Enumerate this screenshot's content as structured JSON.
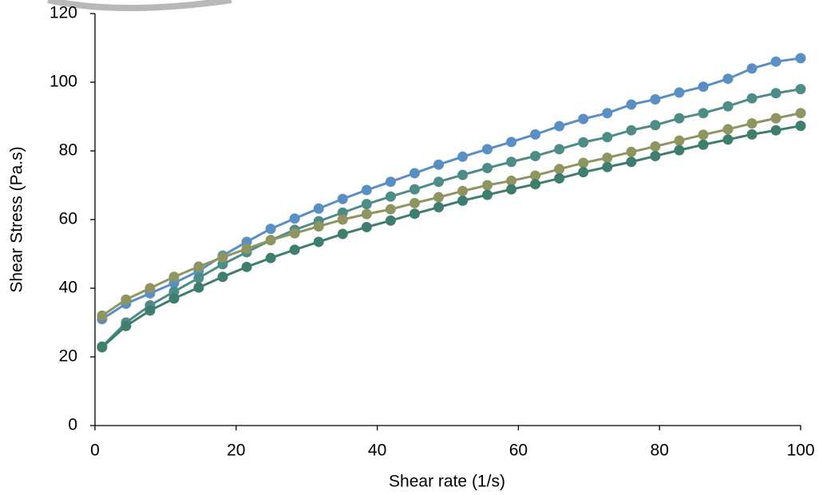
{
  "chart_data": {
    "type": "line",
    "xlabel": "Shear rate (1/s)",
    "ylabel": "Shear Stress (Pa.s)",
    "x": [
      1,
      4.4,
      7.8,
      11.2,
      14.7,
      18.1,
      21.5,
      24.9,
      28.3,
      31.7,
      35.1,
      38.5,
      41.9,
      45.3,
      48.7,
      52.1,
      55.6,
      59,
      62.4,
      65.8,
      69.2,
      72.6,
      76,
      79.4,
      82.8,
      86.2,
      89.7,
      93.1,
      96.5,
      100
    ],
    "series": [
      {
        "color": "#5b8fc4",
        "values": [
          31,
          35.5,
          38.5,
          41.5,
          45,
          49.5,
          53.5,
          57.3,
          60.3,
          63.2,
          66,
          68.6,
          71,
          73.5,
          76,
          78.3,
          80.5,
          82.6,
          84.8,
          87.2,
          89.3,
          91,
          93.5,
          95,
          97,
          98.7,
          101,
          104,
          106,
          107
        ]
      },
      {
        "color": "#4f8c88",
        "values": [
          23,
          30,
          35,
          39,
          43,
          47,
          50.5,
          54,
          57,
          59.5,
          62,
          64.5,
          66.7,
          68.8,
          71,
          73,
          75,
          76.8,
          78.5,
          80.5,
          82.5,
          84,
          86,
          87.5,
          89.5,
          91,
          93,
          95.3,
          96.8,
          98
        ]
      },
      {
        "color": "#8f9560",
        "values": [
          32,
          36.7,
          40,
          43.3,
          46.3,
          49,
          51.5,
          54,
          56,
          58,
          60,
          61.6,
          63,
          64.8,
          66.5,
          68.3,
          70,
          71.3,
          72.8,
          74.7,
          76.5,
          78,
          79.7,
          81.3,
          83,
          84.7,
          86.3,
          88,
          89.5,
          91
        ]
      },
      {
        "color": "#3f7d6f",
        "values": [
          22.8,
          29,
          33.5,
          37,
          40.2,
          43.3,
          46.2,
          48.8,
          51.2,
          53.5,
          55.8,
          57.8,
          59.7,
          61.7,
          63.6,
          65.5,
          67.2,
          68.8,
          70.3,
          72,
          73.8,
          75.3,
          76.8,
          78.5,
          80.2,
          81.8,
          83.3,
          84.8,
          86,
          87.3
        ]
      }
    ],
    "xlim": [
      0,
      100
    ],
    "xticks": [
      0,
      20,
      40,
      60,
      80,
      100
    ],
    "ylim": [
      0,
      120
    ],
    "yticks": [
      0,
      20,
      40,
      60,
      80,
      100,
      120
    ],
    "grid": false
  }
}
